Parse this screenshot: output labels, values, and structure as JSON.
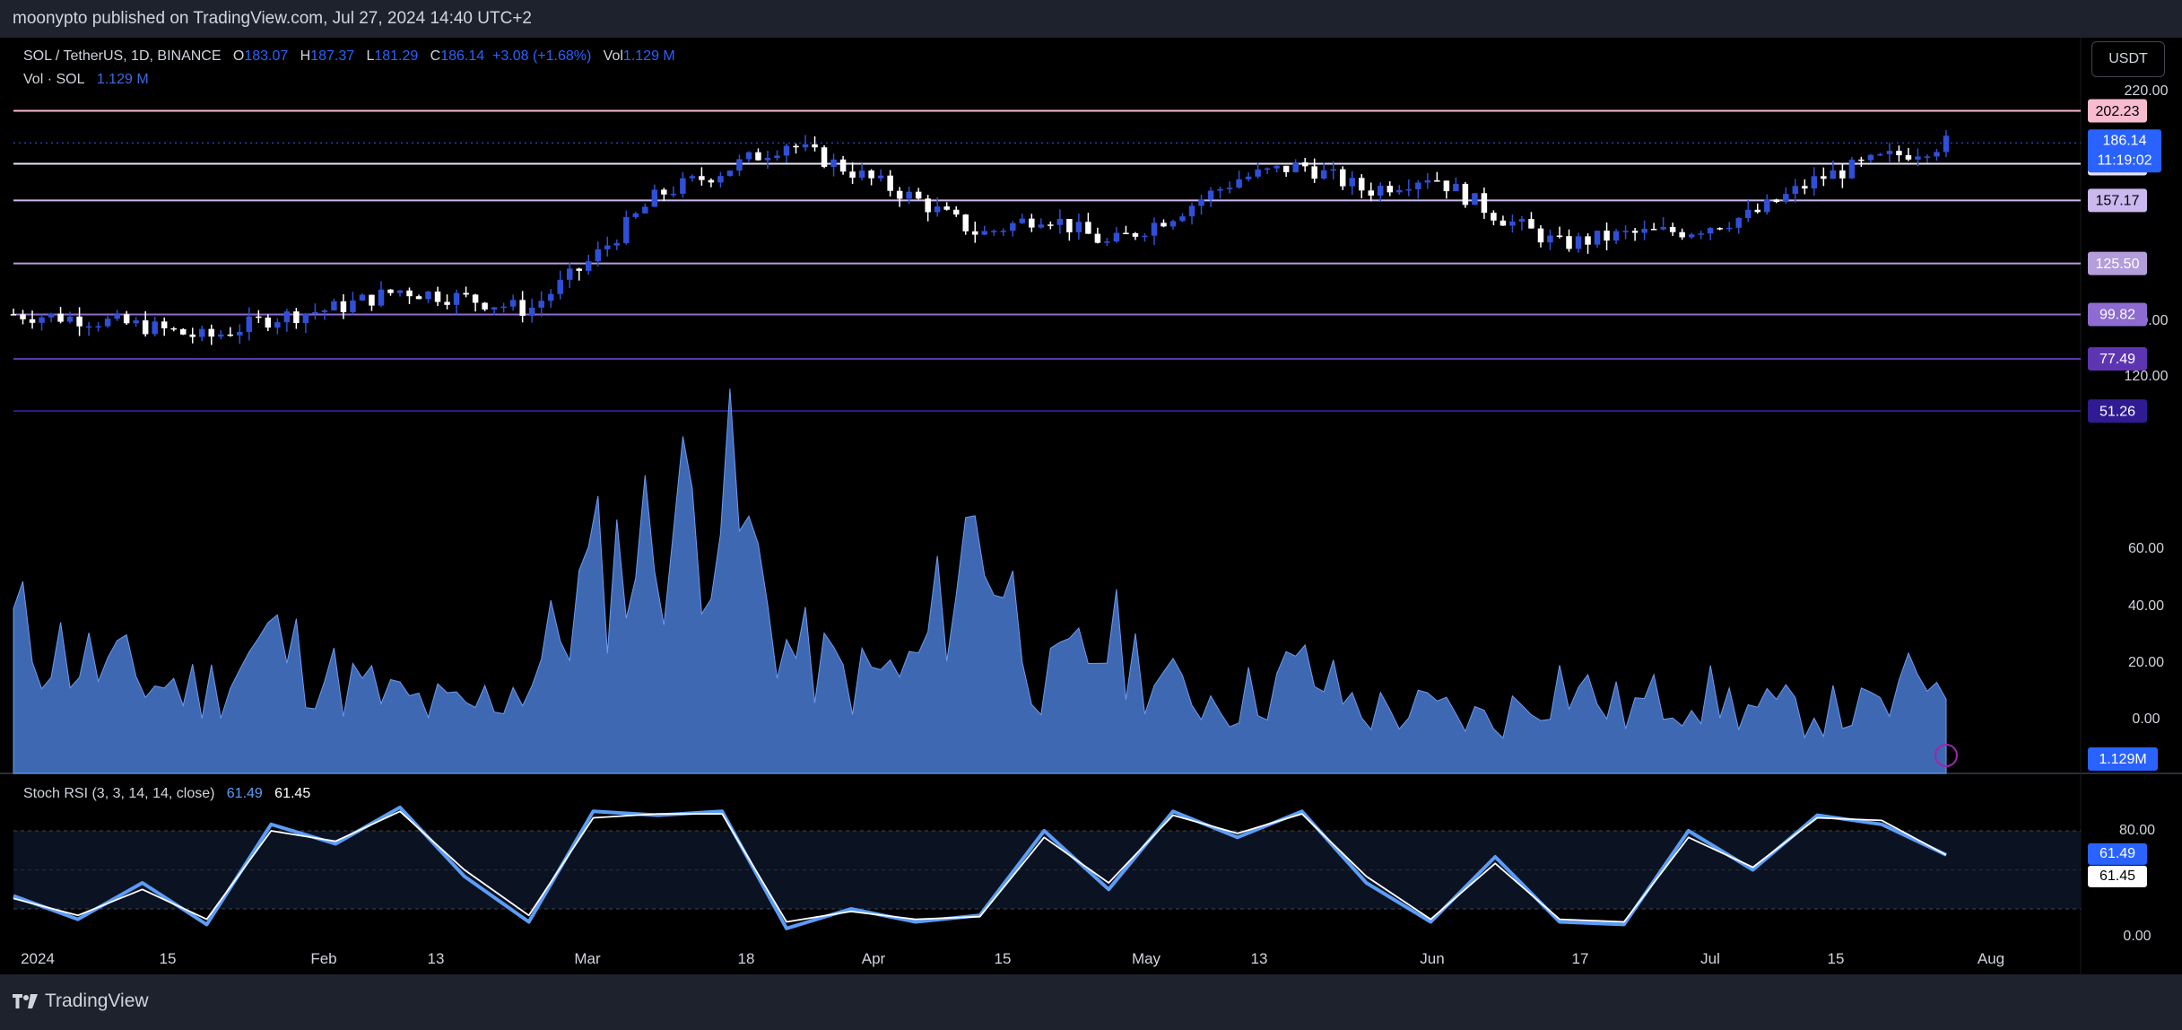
{
  "header": {
    "published_text": "moonypto published on TradingView.com, Jul 27, 2024 14:40 UTC+2"
  },
  "legend": {
    "symbol": "SOL / TetherUS, 1D, BINANCE",
    "open_label": "O",
    "open": "183.07",
    "high_label": "H",
    "high": "187.37",
    "low_label": "L",
    "low": "181.29",
    "close_label": "C",
    "close": "186.14",
    "change": "+3.08 (+1.68%)",
    "vol_label": "Vol",
    "vol": "1.129 M",
    "vol_series_label": "Vol · SOL",
    "vol_series_value": "1.129 M"
  },
  "currency_button": "USDT",
  "stoch": {
    "label": "Stoch RSI (3, 3, 14, 14, close)",
    "k_value": "61.49",
    "d_value": "61.45",
    "k_color": "#5b9cf6",
    "d_color": "#ffffff"
  },
  "price_axis": {
    "ticks": [
      "220.00",
      "140.00",
      "120.00",
      "60.00",
      "40.00",
      "20.00",
      "0.00"
    ],
    "last_price": "186.14",
    "countdown": "11:19:02",
    "volume_label": "1.129M"
  },
  "levels": [
    {
      "value": "202.23",
      "color": "#f8bbd0",
      "text_color": "#000000"
    },
    {
      "value": "175.62",
      "color": "#e8e3f7",
      "text_color": "#000000"
    },
    {
      "value": "157.17",
      "color": "#cbb8ef",
      "text_color": "#000000"
    },
    {
      "value": "125.50",
      "color": "#b39ddb",
      "text_color": "#ffffff"
    },
    {
      "value": "99.82",
      "color": "#8e6bd1",
      "text_color": "#ffffff"
    },
    {
      "value": "77.49",
      "color": "#5e35b1",
      "text_color": "#ffffff"
    },
    {
      "value": "51.26",
      "color": "#311b92",
      "text_color": "#ffffff"
    }
  ],
  "stoch_axis": {
    "ticks": [
      "80.00",
      "0.00"
    ]
  },
  "time_axis": {
    "labels": [
      "2024",
      "15",
      "Feb",
      "13",
      "Mar",
      "18",
      "Apr",
      "15",
      "May",
      "13",
      "Jun",
      "17",
      "Jul",
      "15",
      "Aug"
    ]
  },
  "footer": {
    "brand": "TradingView"
  },
  "colors": {
    "bull": "#2f4fd6",
    "bear": "#ffffff",
    "volume": "#4a7ad1",
    "background": "#000000",
    "last_price_bg": "#2962ff"
  },
  "chart_data": [
    {
      "type": "candlestick",
      "title": "SOL / TetherUS, 1D, BINANCE",
      "ylim": [
        45,
        230
      ],
      "x_start": "2024-01-01",
      "x_end": "2024-07-27",
      "x": [
        "2024-01-01",
        "2024-01-08",
        "2024-01-15",
        "2024-01-22",
        "2024-01-29",
        "2024-02-05",
        "2024-02-12",
        "2024-02-19",
        "2024-02-26",
        "2024-03-04",
        "2024-03-11",
        "2024-03-18",
        "2024-03-25",
        "2024-04-01",
        "2024-04-08",
        "2024-04-15",
        "2024-04-22",
        "2024-04-29",
        "2024-05-06",
        "2024-05-13",
        "2024-05-20",
        "2024-05-27",
        "2024-06-03",
        "2024-06-10",
        "2024-06-17",
        "2024-06-24",
        "2024-07-01",
        "2024-07-08",
        "2024-07-15",
        "2024-07-22",
        "2024-07-27"
      ],
      "close": [
        100,
        98,
        94,
        88,
        98,
        103,
        112,
        108,
        102,
        128,
        160,
        172,
        186,
        172,
        158,
        140,
        150,
        135,
        150,
        168,
        175,
        162,
        170,
        150,
        135,
        140,
        142,
        150,
        168,
        178,
        186.14
      ],
      "horizontal_levels": [
        202.23,
        175.62,
        157.17,
        125.5,
        99.82,
        77.49,
        51.26
      ],
      "last_price": 186.14
    },
    {
      "type": "area",
      "title": "Vol · SOL",
      "ylim": [
        0,
        3.2
      ],
      "x": [
        "2024-01-01",
        "2024-01-08",
        "2024-01-15",
        "2024-01-22",
        "2024-01-29",
        "2024-02-05",
        "2024-02-12",
        "2024-02-19",
        "2024-02-26",
        "2024-03-04",
        "2024-03-11",
        "2024-03-18",
        "2024-03-25",
        "2024-04-01",
        "2024-04-08",
        "2024-04-15",
        "2024-04-22",
        "2024-04-29",
        "2024-05-06",
        "2024-05-13",
        "2024-05-20",
        "2024-05-27",
        "2024-06-03",
        "2024-06-10",
        "2024-06-17",
        "2024-06-24",
        "2024-07-01",
        "2024-07-08",
        "2024-07-15",
        "2024-07-22",
        "2024-07-27"
      ],
      "values": [
        1.4,
        1.1,
        0.9,
        0.8,
        1.3,
        0.9,
        0.7,
        0.6,
        0.9,
        1.9,
        2.3,
        2.8,
        1.2,
        0.9,
        1.0,
        2.5,
        0.8,
        1.3,
        0.8,
        0.7,
        1.0,
        0.6,
        0.6,
        0.5,
        0.9,
        0.6,
        0.8,
        0.6,
        0.6,
        0.6,
        1.129
      ],
      "last_value": 1.129
    },
    {
      "type": "line",
      "title": "Stoch RSI (3, 3, 14, 14, close)",
      "ylim": [
        0,
        100
      ],
      "bands": [
        80,
        20
      ],
      "x": [
        "2024-01-01",
        "2024-01-08",
        "2024-01-15",
        "2024-01-22",
        "2024-01-29",
        "2024-02-05",
        "2024-02-12",
        "2024-02-19",
        "2024-02-26",
        "2024-03-04",
        "2024-03-11",
        "2024-03-18",
        "2024-03-25",
        "2024-04-01",
        "2024-04-08",
        "2024-04-15",
        "2024-04-22",
        "2024-04-29",
        "2024-05-06",
        "2024-05-13",
        "2024-05-20",
        "2024-05-27",
        "2024-06-03",
        "2024-06-10",
        "2024-06-17",
        "2024-06-24",
        "2024-07-01",
        "2024-07-08",
        "2024-07-15",
        "2024-07-22",
        "2024-07-27"
      ],
      "series": [
        {
          "name": "K",
          "values": [
            30,
            12,
            40,
            8,
            85,
            70,
            98,
            45,
            10,
            95,
            92,
            95,
            5,
            20,
            10,
            15,
            80,
            35,
            95,
            75,
            95,
            40,
            10,
            60,
            10,
            8,
            80,
            50,
            92,
            85,
            61.49
          ]
        },
        {
          "name": "D",
          "values": [
            28,
            15,
            35,
            12,
            80,
            72,
            95,
            50,
            15,
            90,
            93,
            93,
            10,
            18,
            12,
            14,
            75,
            40,
            92,
            78,
            93,
            45,
            12,
            55,
            12,
            10,
            75,
            52,
            90,
            88,
            61.45
          ]
        }
      ]
    }
  ]
}
